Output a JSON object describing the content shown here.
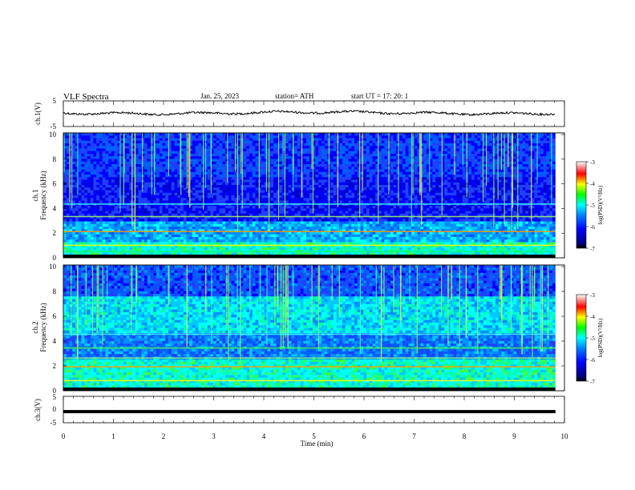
{
  "header": {
    "title": "VLF  Spectra",
    "date": "Jan. 25, 2023",
    "station": "station= ATH",
    "start": "start  UT  =    17: 20: 1"
  },
  "chart_data": [
    {
      "type": "line",
      "name": "ch1-waveform",
      "ylabel": "ch.1(V)",
      "xlim": [
        0,
        10
      ],
      "ylim": [
        -5,
        5
      ],
      "yticks": [
        "5",
        "-5"
      ],
      "level": 0.3,
      "color": "#000000"
    },
    {
      "type": "heatmap",
      "name": "ch1-spectrogram",
      "ylabel_top": "ch.1",
      "ylabel": "Frequency  (kHz)",
      "xlim": [
        0,
        9.85
      ],
      "ylim": [
        0,
        10
      ],
      "yticks": [
        "0",
        "2",
        "4",
        "6",
        "8",
        "10"
      ],
      "colorbar": {
        "label": "log(PSD)(V²/Hz)",
        "ticks": [
          "-3",
          "-4",
          "-5",
          "-6",
          "-7"
        ],
        "range": [
          -7,
          -3
        ]
      }
    },
    {
      "type": "heatmap",
      "name": "ch2-spectrogram",
      "ylabel_top": "ch.2",
      "ylabel": "Frequency  (kHz)",
      "xlim": [
        0,
        9.85
      ],
      "ylim": [
        0,
        10
      ],
      "yticks": [
        "0",
        "2",
        "4",
        "6",
        "8",
        "10"
      ],
      "colorbar": {
        "label": "log(PSD)(V²/Hz)",
        "ticks": [
          "-3",
          "-4",
          "-5",
          "-6",
          "-7"
        ],
        "range": [
          -7,
          -3
        ]
      }
    },
    {
      "type": "line",
      "name": "ch3-waveform",
      "ylabel": "ch.3(V)",
      "xlabel": "Time  (min)",
      "xlim": [
        0,
        10
      ],
      "ylim": [
        -5,
        5
      ],
      "yticks": [
        "5",
        "0",
        "-5"
      ],
      "level": -0.8,
      "color": "#000000"
    }
  ],
  "x_ticks": [
    "0",
    "1",
    "2",
    "3",
    "4",
    "5",
    "6",
    "7",
    "8",
    "9",
    "10"
  ]
}
